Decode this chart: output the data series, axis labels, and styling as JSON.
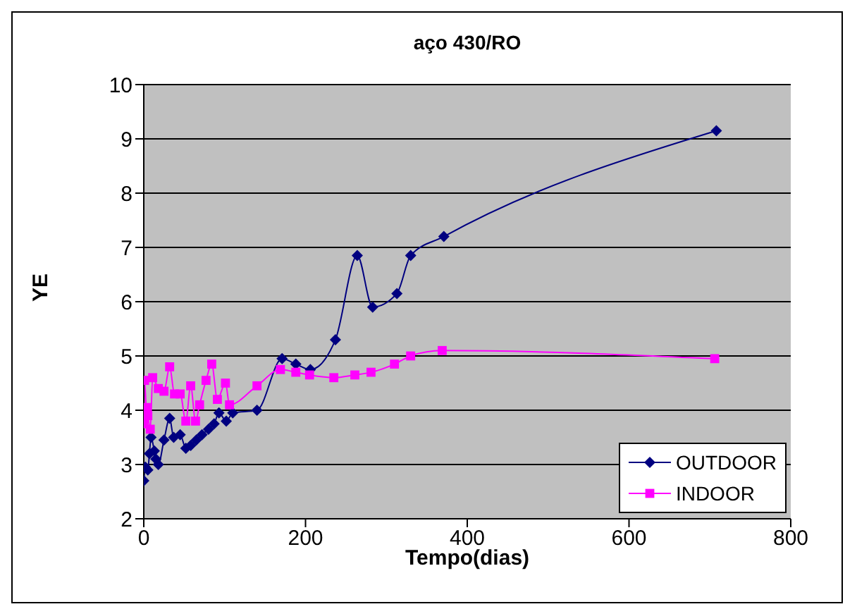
{
  "chart_data": {
    "type": "line",
    "title": "aço 430/RO",
    "xlabel": "Tempo(dias)",
    "ylabel": "YE",
    "xlim": [
      0,
      800
    ],
    "xticks": [
      0,
      200,
      400,
      600,
      800
    ],
    "ylim": [
      2,
      10
    ],
    "yticks": [
      2,
      3,
      4,
      5,
      6,
      7,
      8,
      9,
      10
    ],
    "grid": "y",
    "legend": "bottom right",
    "series": [
      {
        "name": "OUTDOOR",
        "color": "#000080",
        "marker": "diamond",
        "x": [
          0,
          2,
          5,
          7,
          9,
          13,
          15,
          18,
          25,
          32,
          37,
          45,
          52,
          58,
          65,
          72,
          80,
          87,
          93,
          102,
          110,
          140,
          171,
          188,
          206,
          237,
          264,
          283,
          313,
          330,
          371,
          708
        ],
        "values": [
          2.7,
          2.95,
          2.9,
          3.2,
          3.5,
          3.25,
          3.1,
          3.0,
          3.45,
          3.85,
          3.5,
          3.55,
          3.3,
          3.35,
          3.45,
          3.55,
          3.65,
          3.75,
          3.95,
          3.8,
          3.95,
          4.0,
          4.95,
          4.85,
          4.75,
          5.3,
          6.85,
          5.9,
          6.15,
          6.85,
          7.2,
          9.15
        ]
      },
      {
        "name": "INDOOR",
        "color": "#ff00ff",
        "marker": "square",
        "x": [
          0,
          1,
          3,
          5,
          8,
          11,
          18,
          25,
          32,
          38,
          45,
          52,
          58,
          64,
          69,
          77,
          84,
          91,
          101,
          106,
          140,
          169,
          188,
          205,
          235,
          261,
          281,
          310,
          330,
          369,
          706
        ],
        "values": [
          3.75,
          4.55,
          4.05,
          3.9,
          3.65,
          4.6,
          4.4,
          4.35,
          4.8,
          4.3,
          4.3,
          3.8,
          4.45,
          3.8,
          4.1,
          4.55,
          4.85,
          4.2,
          4.5,
          4.1,
          4.45,
          4.75,
          4.7,
          4.65,
          4.6,
          4.65,
          4.7,
          4.85,
          5.0,
          5.1,
          4.95
        ]
      }
    ]
  }
}
